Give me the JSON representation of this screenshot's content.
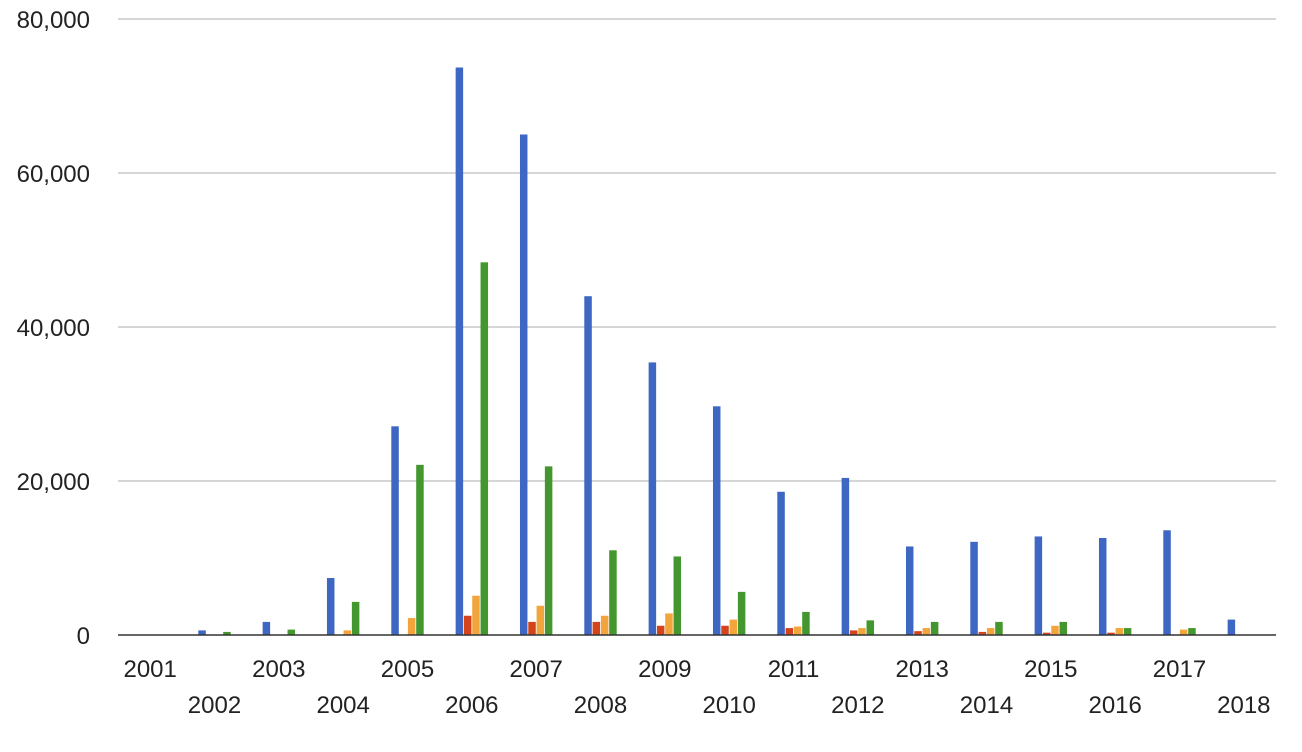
{
  "chart_data": {
    "type": "bar",
    "categories": [
      "2001",
      "2002",
      "2003",
      "2004",
      "2005",
      "2006",
      "2007",
      "2008",
      "2009",
      "2010",
      "2011",
      "2012",
      "2013",
      "2014",
      "2015",
      "2016",
      "2017",
      "2018"
    ],
    "series": [
      {
        "color": "#3d67c3",
        "values": [
          0,
          600,
          1700,
          7400,
          27100,
          73700,
          65000,
          44000,
          35400,
          29700,
          18600,
          20400,
          11500,
          12100,
          12800,
          12600,
          13600,
          2000
        ]
      },
      {
        "color": "#d3441c",
        "values": [
          0,
          0,
          0,
          0,
          0,
          2500,
          1700,
          1700,
          1200,
          1200,
          900,
          600,
          500,
          400,
          300,
          300,
          0,
          0
        ]
      },
      {
        "color": "#f2a53c",
        "values": [
          0,
          0,
          0,
          600,
          2200,
          5100,
          3800,
          2500,
          2800,
          2000,
          1100,
          900,
          900,
          900,
          1200,
          900,
          700,
          0
        ]
      },
      {
        "color": "#44962e",
        "values": [
          0,
          400,
          700,
          4300,
          22100,
          48400,
          21900,
          11000,
          10200,
          5600,
          3000,
          1900,
          1700,
          1700,
          1700,
          900,
          900,
          0
        ]
      }
    ],
    "y_ticks": [
      "0",
      "20,000",
      "40,000",
      "60,000",
      "80,000"
    ],
    "ylim": [
      0,
      80000
    ],
    "grid": true,
    "legend": "none"
  }
}
